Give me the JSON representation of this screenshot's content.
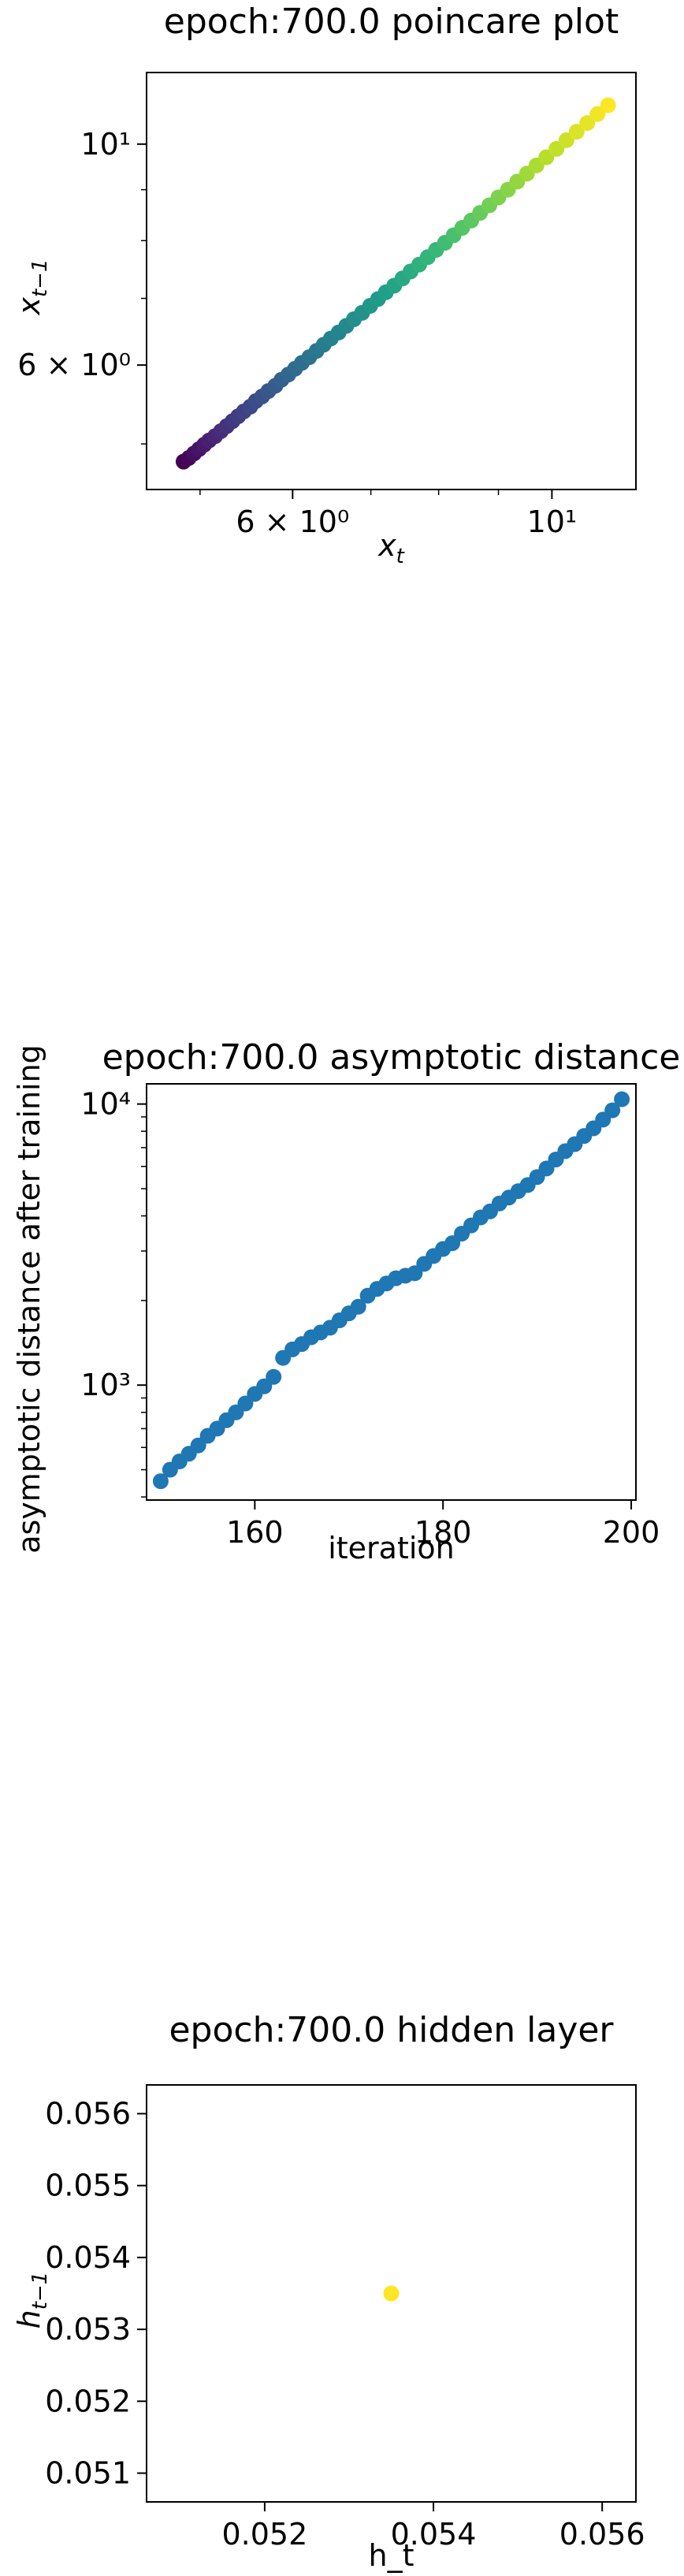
{
  "chart_data": [
    {
      "type": "scatter",
      "title": "epoch:700.0 poincare plot",
      "xlabel": "x_t",
      "ylabel": "x_{t-1}",
      "xscale": "log",
      "yscale": "log",
      "xlim": [
        4.5,
        11.8
      ],
      "ylim": [
        4.5,
        11.8
      ],
      "colormap": "viridis",
      "x_ticks": [
        {
          "value": 6,
          "label": "6 × 10⁰"
        },
        {
          "value": 10,
          "label": "10¹"
        }
      ],
      "y_ticks": [
        {
          "value": 6,
          "label": "6 × 10⁰"
        },
        {
          "value": 10,
          "label": "10¹"
        }
      ],
      "minor_ticks": [
        5,
        7,
        8,
        9
      ],
      "x": [
        4.84,
        4.89,
        4.94,
        4.99,
        5.04,
        5.09,
        5.15,
        5.21,
        5.27,
        5.33,
        5.39,
        5.45,
        5.52,
        5.58,
        5.65,
        5.72,
        5.8,
        5.87,
        5.95,
        6.03,
        6.11,
        6.2,
        6.29,
        6.38,
        6.47,
        6.57,
        6.67,
        6.77,
        6.88,
        6.99,
        7.1,
        7.21,
        7.33,
        7.45,
        7.57,
        7.7,
        7.83,
        7.96,
        8.1,
        8.24,
        8.38,
        8.53,
        8.68,
        8.84,
        9.0,
        9.17,
        9.34,
        9.52,
        9.7,
        9.89,
        10.09,
        10.29,
        10.5,
        10.72,
        10.94,
        11.17
      ],
      "y": [
        4.8,
        4.84,
        4.89,
        4.94,
        4.99,
        5.04,
        5.09,
        5.15,
        5.21,
        5.27,
        5.33,
        5.39,
        5.45,
        5.52,
        5.58,
        5.65,
        5.72,
        5.8,
        5.87,
        5.95,
        6.03,
        6.11,
        6.2,
        6.29,
        6.38,
        6.47,
        6.57,
        6.67,
        6.77,
        6.88,
        6.99,
        7.1,
        7.21,
        7.33,
        7.45,
        7.57,
        7.7,
        7.83,
        7.96,
        8.1,
        8.24,
        8.38,
        8.53,
        8.68,
        8.84,
        9.0,
        9.17,
        9.34,
        9.52,
        9.7,
        9.89,
        10.09,
        10.29,
        10.5,
        10.72,
        10.94
      ],
      "grid": false
    },
    {
      "type": "scatter",
      "title": "epoch:700.0 asymptotic distance",
      "xlabel": "iteration",
      "ylabel": "asymptotic distance after training",
      "xscale": "linear",
      "yscale": "log",
      "xlim": [
        148.5,
        200.5
      ],
      "ylim": [
        390,
        11800
      ],
      "color": "#1f77b4",
      "x_ticks": [
        {
          "value": 160,
          "label": "160"
        },
        {
          "value": 180,
          "label": "180"
        },
        {
          "value": 200,
          "label": "200"
        }
      ],
      "y_ticks": [
        {
          "value": 1000,
          "label": "10³"
        },
        {
          "value": 10000,
          "label": "10⁴"
        }
      ],
      "minor_ticks": [
        400,
        500,
        600,
        700,
        800,
        900,
        2000,
        3000,
        4000,
        5000,
        6000,
        7000,
        8000,
        9000
      ],
      "x": [
        150,
        151,
        152,
        153,
        154,
        155,
        156,
        157,
        158,
        159,
        160,
        161,
        162,
        163,
        164,
        165,
        166,
        167,
        168,
        169,
        170,
        171,
        172,
        173,
        174,
        175,
        176,
        177,
        178,
        179,
        180,
        181,
        182,
        183,
        184,
        185,
        186,
        187,
        188,
        189,
        190,
        191,
        192,
        193,
        194,
        195,
        196,
        197,
        198,
        199
      ],
      "y": [
        455,
        500,
        535,
        570,
        610,
        660,
        700,
        750,
        800,
        860,
        930,
        990,
        1070,
        1250,
        1340,
        1400,
        1480,
        1540,
        1600,
        1700,
        1800,
        1900,
        2080,
        2200,
        2300,
        2400,
        2450,
        2500,
        2700,
        2880,
        3050,
        3200,
        3460,
        3700,
        3950,
        4150,
        4430,
        4650,
        4900,
        5150,
        5500,
        5900,
        6350,
        6800,
        7200,
        7700,
        8200,
        8800,
        9500,
        10400
      ],
      "grid": false
    },
    {
      "type": "scatter",
      "title": "epoch:700.0 hidden layer",
      "xlabel": "h_t",
      "ylabel": "h_{t-1}",
      "xscale": "linear",
      "yscale": "linear",
      "xlim": [
        0.0506,
        0.0564
      ],
      "ylim": [
        0.0506,
        0.0564
      ],
      "color": "#fde725",
      "x_ticks": [
        {
          "value": 0.052,
          "label": "0.052"
        },
        {
          "value": 0.054,
          "label": "0.054"
        },
        {
          "value": 0.056,
          "label": "0.056"
        }
      ],
      "y_ticks": [
        {
          "value": 0.051,
          "label": "0.051"
        },
        {
          "value": 0.052,
          "label": "0.052"
        },
        {
          "value": 0.053,
          "label": "0.053"
        },
        {
          "value": 0.054,
          "label": "0.054"
        },
        {
          "value": 0.055,
          "label": "0.055"
        },
        {
          "value": 0.056,
          "label": "0.056"
        }
      ],
      "x": [
        0.0535
      ],
      "y": [
        0.0535
      ],
      "grid": false
    }
  ]
}
